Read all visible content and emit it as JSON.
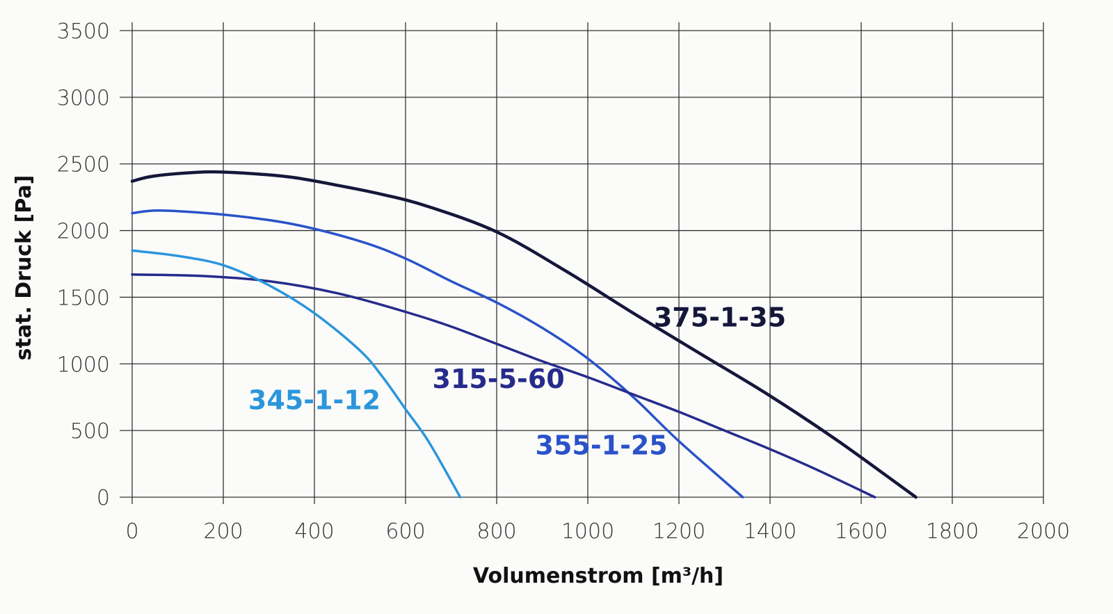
{
  "chart_data": {
    "type": "line",
    "title": "",
    "xlabel": "Volumenstrom [m³/h]",
    "ylabel": "stat. Druck [Pa]",
    "xlim": [
      0,
      2000
    ],
    "ylim": [
      0,
      3500
    ],
    "x_ticks": [
      0,
      200,
      400,
      600,
      800,
      1000,
      1200,
      1400,
      1600,
      1800,
      2000
    ],
    "y_ticks": [
      0,
      500,
      1000,
      1500,
      2000,
      2500,
      3000,
      3500
    ],
    "x_tick_labels": [
      "0",
      "200",
      "400",
      "600",
      "800",
      "1000",
      "1200",
      "1400",
      "1600",
      "1800",
      "2000"
    ],
    "y_tick_labels": [
      "0",
      "500",
      "1000",
      "1500",
      "2000",
      "2500",
      "3000",
      "3500"
    ],
    "grid": true,
    "legend": "none",
    "series": [
      {
        "name": "375-1-35",
        "color": "#15173a",
        "label_pos": [
          1290,
          1280
        ],
        "x": [
          0,
          50,
          160,
          250,
          350,
          450,
          550,
          650,
          800,
          950,
          1100,
          1250,
          1400,
          1550,
          1720
        ],
        "y": [
          2370,
          2410,
          2440,
          2430,
          2400,
          2340,
          2270,
          2180,
          1990,
          1700,
          1380,
          1070,
          760,
          420,
          0
        ]
      },
      {
        "name": "355-1-25",
        "color": "#2a52c9",
        "label_pos": [
          1030,
          320
        ],
        "x": [
          0,
          60,
          200,
          350,
          500,
          600,
          700,
          800,
          900,
          1000,
          1100,
          1200,
          1340
        ],
        "y": [
          2130,
          2150,
          2120,
          2050,
          1920,
          1790,
          1620,
          1460,
          1270,
          1040,
          750,
          420,
          0
        ]
      },
      {
        "name": "315-5-60",
        "color": "#262b8c",
        "label_pos": [
          804,
          820
        ],
        "x": [
          0,
          150,
          300,
          450,
          600,
          700,
          800,
          900,
          1000,
          1100,
          1200,
          1300,
          1400,
          1500,
          1630
        ],
        "y": [
          1670,
          1660,
          1620,
          1530,
          1390,
          1280,
          1150,
          1020,
          900,
          770,
          640,
          500,
          360,
          210,
          0
        ]
      },
      {
        "name": "345-1-12",
        "color": "#2b96dc",
        "label_pos": [
          400,
          660
        ],
        "x": [
          0,
          100,
          200,
          300,
          400,
          500,
          550,
          600,
          650,
          720
        ],
        "y": [
          1850,
          1810,
          1740,
          1590,
          1380,
          1100,
          900,
          660,
          420,
          0
        ]
      }
    ]
  }
}
